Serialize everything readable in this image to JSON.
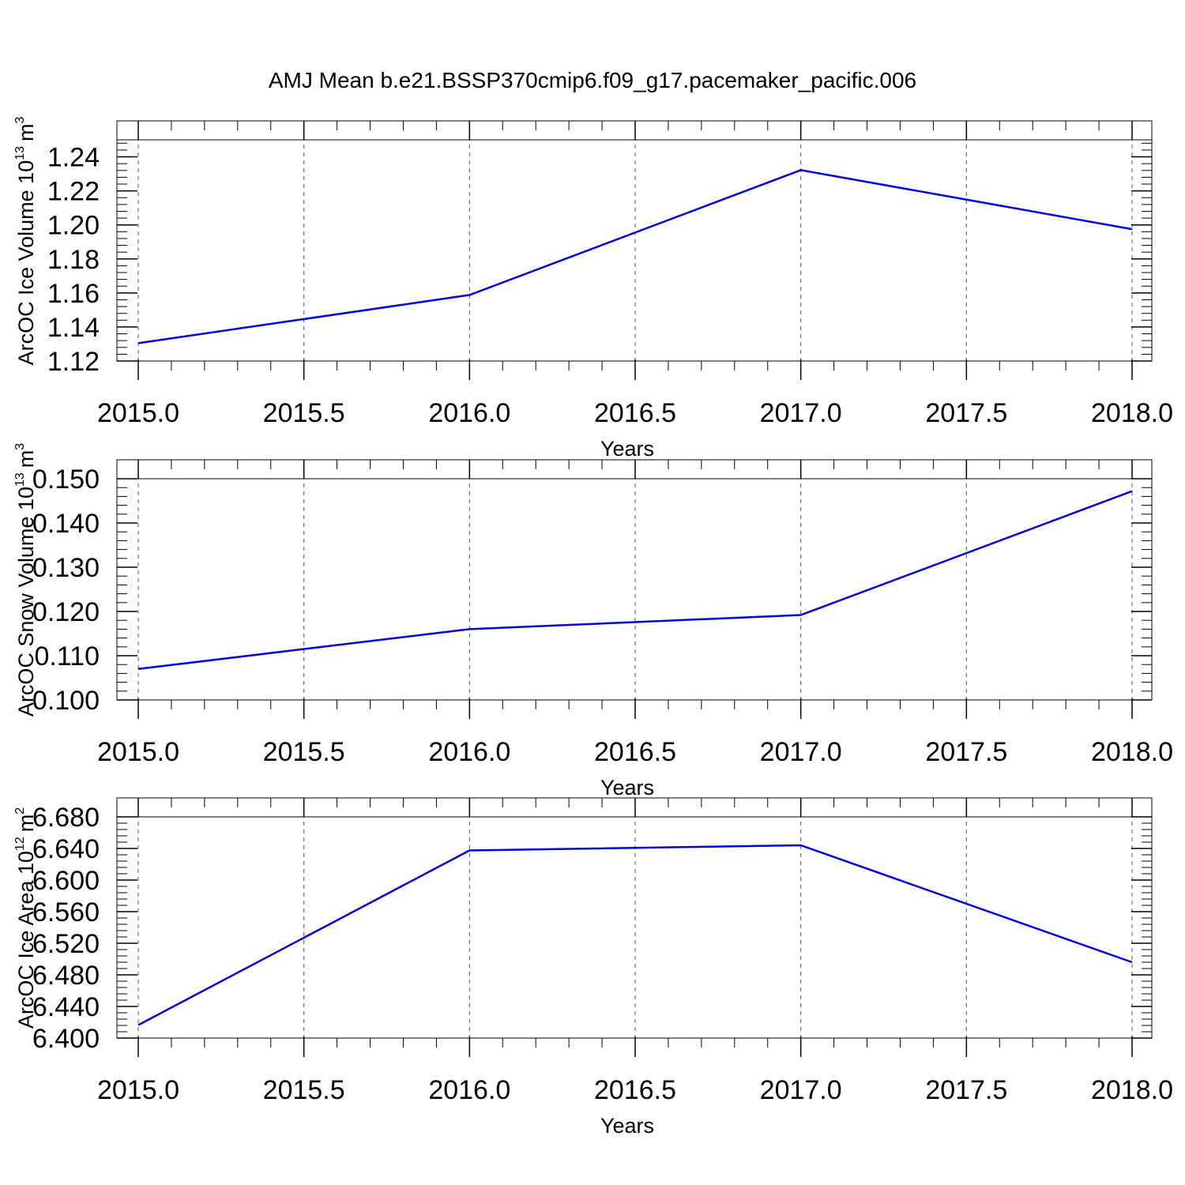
{
  "title": "AMJ Mean b.e21.BSSP370cmip6.f09_g17.pacemaker_pacific.006",
  "chart_data": [
    {
      "type": "line",
      "ylabel": "ArcOC Ice Volume 10",
      "ylabel_exponent": "13",
      "ylabel_unit": "m",
      "ylabel_unit_exponent": "3",
      "xlabel": "Years",
      "xlim": [
        2015.0,
        2018.0
      ],
      "ylim": [
        1.12,
        1.25
      ],
      "x_ticks": [
        "2015.0",
        "2015.5",
        "2016.0",
        "2016.5",
        "2017.0",
        "2017.5",
        "2018.0"
      ],
      "y_ticks": [
        "1.12",
        "1.14",
        "1.16",
        "1.18",
        "1.20",
        "1.22",
        "1.24"
      ],
      "line_color": "#0000e6",
      "series": [
        {
          "x": [
            2015,
            2016,
            2017,
            2018
          ],
          "values": [
            1.1305,
            1.1588,
            1.2322,
            1.1975
          ]
        }
      ]
    },
    {
      "type": "line",
      "ylabel": "ArcOC Snow Volume 10",
      "ylabel_exponent": "13",
      "ylabel_unit": "m",
      "ylabel_unit_exponent": "3",
      "xlabel": "Years",
      "xlim": [
        2015.0,
        2018.0
      ],
      "ylim": [
        0.1,
        0.15
      ],
      "x_ticks": [
        "2015.0",
        "2015.5",
        "2016.0",
        "2016.5",
        "2017.0",
        "2017.5",
        "2018.0"
      ],
      "y_ticks": [
        "0.100",
        "0.110",
        "0.120",
        "0.130",
        "0.140",
        "0.150"
      ],
      "line_color": "#0000e6",
      "series": [
        {
          "x": [
            2015,
            2016,
            2017,
            2018
          ],
          "values": [
            0.107,
            0.116,
            0.1192,
            0.1472
          ]
        }
      ]
    },
    {
      "type": "line",
      "ylabel": "ArcOC Ice Area 10",
      "ylabel_exponent": "12",
      "ylabel_unit": "m",
      "ylabel_unit_exponent": "2",
      "xlabel": "Years",
      "xlim": [
        2015.0,
        2018.0
      ],
      "ylim": [
        6.4,
        6.68
      ],
      "x_ticks": [
        "2015.0",
        "2015.5",
        "2016.0",
        "2016.5",
        "2017.0",
        "2017.5",
        "2018.0"
      ],
      "y_ticks": [
        "6.400",
        "6.440",
        "6.480",
        "6.520",
        "6.560",
        "6.600",
        "6.640",
        "6.680"
      ],
      "line_color": "#0000e6",
      "series": [
        {
          "x": [
            2015,
            2016,
            2017,
            2018
          ],
          "values": [
            6.4165,
            6.6375,
            6.644,
            6.496
          ]
        }
      ]
    }
  ]
}
